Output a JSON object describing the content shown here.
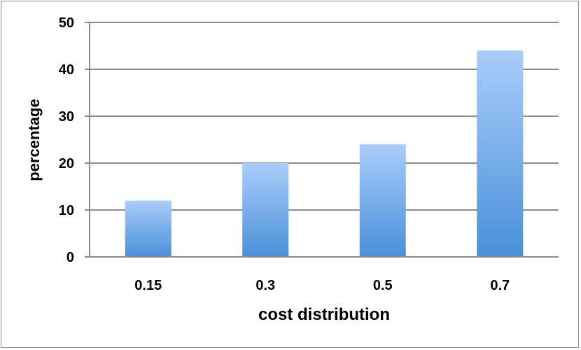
{
  "chart_data": {
    "type": "bar",
    "title": "",
    "xlabel": "cost distribution",
    "ylabel": "percentage",
    "categories": [
      "0.15",
      "0.3",
      "0.5",
      "0.7"
    ],
    "values": [
      12,
      20,
      24,
      44
    ],
    "ylim": [
      0,
      50
    ],
    "yticks": [
      0,
      10,
      20,
      30,
      40,
      50
    ],
    "grid": true,
    "legend": "none",
    "colors": {
      "bar_top": "#a9cdfb",
      "bar_bottom": "#4a90d9",
      "grid": "#8c8c8c",
      "text": "#000000"
    }
  }
}
